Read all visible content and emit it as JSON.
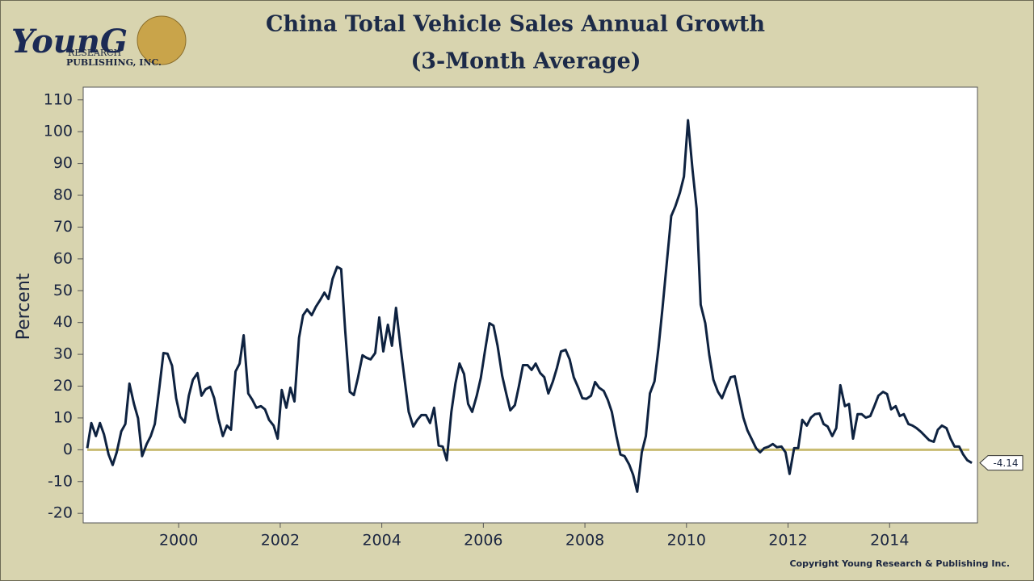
{
  "logo": {
    "name": "YounG",
    "line1": "RESEARCH",
    "line2": "PUBLISHING, INC."
  },
  "copyright": "Copyright Young Research & Publishing Inc.",
  "chart_data": {
    "type": "line",
    "title": "China Total Vehicle Sales Annual Growth",
    "subtitle": "(3-Month Average)",
    "y_label": "Percent",
    "xlim": [
      1998.12,
      2015.73
    ],
    "xticks": [
      2000,
      2002,
      2004,
      2006,
      2008,
      2010,
      2012,
      2014
    ],
    "ylim": [
      -23,
      114
    ],
    "yticks": [
      -20,
      -10,
      0,
      10,
      20,
      30,
      40,
      50,
      60,
      70,
      80,
      90,
      100,
      110
    ],
    "grid": false,
    "hline": {
      "value": 0,
      "color": "#c9bc72"
    },
    "x": [
      1998.2,
      1998.28,
      1998.37,
      1998.45,
      1998.53,
      1998.62,
      1998.7,
      1998.78,
      1998.87,
      1998.95,
      1999.03,
      1999.12,
      1999.2,
      1999.28,
      1999.37,
      1999.45,
      1999.53,
      1999.62,
      1999.7,
      1999.78,
      1999.87,
      1999.95,
      2000.03,
      2000.12,
      2000.2,
      2000.28,
      2000.37,
      2000.45,
      2000.53,
      2000.62,
      2000.7,
      2000.78,
      2000.87,
      2000.95,
      2001.03,
      2001.12,
      2001.2,
      2001.28,
      2001.37,
      2001.45,
      2001.53,
      2001.62,
      2001.7,
      2001.78,
      2001.87,
      2001.95,
      2002.03,
      2002.12,
      2002.2,
      2002.28,
      2002.37,
      2002.45,
      2002.53,
      2002.62,
      2002.7,
      2002.78,
      2002.87,
      2002.95,
      2003.03,
      2003.12,
      2003.2,
      2003.28,
      2003.37,
      2003.45,
      2003.53,
      2003.62,
      2003.7,
      2003.78,
      2003.87,
      2003.95,
      2004.03,
      2004.12,
      2004.2,
      2004.28,
      2004.37,
      2004.45,
      2004.53,
      2004.62,
      2004.7,
      2004.78,
      2004.87,
      2004.95,
      2005.03,
      2005.12,
      2005.2,
      2005.28,
      2005.37,
      2005.45,
      2005.53,
      2005.62,
      2005.7,
      2005.78,
      2005.87,
      2005.95,
      2006.03,
      2006.12,
      2006.2,
      2006.28,
      2006.37,
      2006.45,
      2006.53,
      2006.62,
      2006.7,
      2006.78,
      2006.87,
      2006.95,
      2007.03,
      2007.12,
      2007.2,
      2007.28,
      2007.37,
      2007.45,
      2007.53,
      2007.62,
      2007.7,
      2007.78,
      2007.87,
      2007.95,
      2008.03,
      2008.12,
      2008.2,
      2008.28,
      2008.37,
      2008.45,
      2008.53,
      2008.62,
      2008.7,
      2008.78,
      2008.87,
      2008.95,
      2009.03,
      2009.12,
      2009.2,
      2009.28,
      2009.37,
      2009.45,
      2009.53,
      2009.62,
      2009.7,
      2009.78,
      2009.87,
      2009.95,
      2010.03,
      2010.12,
      2010.2,
      2010.28,
      2010.37,
      2010.45,
      2010.53,
      2010.62,
      2010.7,
      2010.78,
      2010.87,
      2010.95,
      2011.03,
      2011.12,
      2011.2,
      2011.28,
      2011.37,
      2011.45,
      2011.53,
      2011.62,
      2011.7,
      2011.78,
      2011.87,
      2011.95,
      2012.03,
      2012.12,
      2012.2,
      2012.28,
      2012.37,
      2012.45,
      2012.53,
      2012.62,
      2012.7,
      2012.78,
      2012.87,
      2012.95,
      2013.03,
      2013.12,
      2013.2,
      2013.28,
      2013.37,
      2013.45,
      2013.53,
      2013.62,
      2013.7,
      2013.78,
      2013.87,
      2013.95,
      2014.03,
      2014.12,
      2014.2,
      2014.28,
      2014.37,
      2014.45,
      2014.53,
      2014.62,
      2014.7,
      2014.78,
      2014.87,
      2014.95,
      2015.03,
      2015.12,
      2015.2,
      2015.28,
      2015.37,
      2015.45,
      2015.53,
      2015.62
    ],
    "series": [
      {
        "name": "China Total Vehicle Sales Annual Growth",
        "color": "#0e2240",
        "values": [
          0.5,
          8.4,
          4.3,
          8.4,
          4.8,
          -1.5,
          -4.8,
          -0.8,
          5.8,
          8.1,
          20.8,
          14.4,
          9.9,
          -2,
          1.8,
          4.3,
          8.1,
          19.5,
          30.4,
          30.2,
          26.4,
          16.2,
          10.4,
          8.6,
          17,
          22,
          24.1,
          17,
          19,
          19.8,
          16.2,
          9.9,
          4.3,
          7.6,
          6.3,
          24.6,
          27.1,
          36,
          17.7,
          15.7,
          13.2,
          13.7,
          12.7,
          9.4,
          7.6,
          3.5,
          18.8,
          13.2,
          19.5,
          15.2,
          35.2,
          42.3,
          44.1,
          42.3,
          44.9,
          46.9,
          49.4,
          47.4,
          53.7,
          57.5,
          56.8,
          37.3,
          18.2,
          17.2,
          22.6,
          29.7,
          28.9,
          28.4,
          30.4,
          41.6,
          30.9,
          39.3,
          32.7,
          44.6,
          32.2,
          22,
          11.9,
          7.3,
          9.4,
          10.9,
          10.9,
          8.4,
          13.2,
          1.3,
          1,
          -3.3,
          11.9,
          20.8,
          27.1,
          23.8,
          14.4,
          11.9,
          17,
          22.6,
          30.9,
          39.8,
          39,
          32.7,
          23.3,
          17.7,
          12.4,
          14,
          20,
          26.6,
          26.6,
          25.1,
          27.1,
          24.1,
          22.8,
          17.7,
          21.5,
          25.8,
          30.9,
          31.4,
          28.4,
          22.8,
          19.5,
          16.2,
          16,
          17,
          21.3,
          19.5,
          18.5,
          15.7,
          11.9,
          4.3,
          -1.5,
          -2,
          -4.6,
          -7.9,
          -13.2,
          -0.8,
          4.3,
          17.7,
          21.5,
          32.2,
          44.9,
          60.1,
          73.5,
          76.5,
          80.8,
          85.9,
          103.6,
          87.9,
          75.8,
          45.6,
          39.8,
          29.7,
          22,
          18.2,
          16.2,
          19.5,
          22.8,
          23.1,
          17,
          10.1,
          6.1,
          3.5,
          0.5,
          -0.8,
          0.5,
          1,
          1.8,
          0.8,
          1,
          -0.8,
          -7.6,
          0.5,
          0.5,
          9.4,
          7.6,
          10.1,
          11.2,
          11.4,
          8.1,
          7.3,
          4.3,
          6.8,
          20.3,
          13.7,
          14.4,
          3.5,
          11.2,
          11.2,
          10.1,
          10.6,
          13.7,
          17,
          18.2,
          17.5,
          12.7,
          13.7,
          10.6,
          11.2,
          8.1,
          7.6,
          6.8,
          5.6,
          4.3,
          3,
          2.5,
          6.3,
          7.6,
          6.8,
          3.5,
          1,
          1,
          -1.5,
          -3.3,
          -4.14
        ]
      }
    ]
  }
}
